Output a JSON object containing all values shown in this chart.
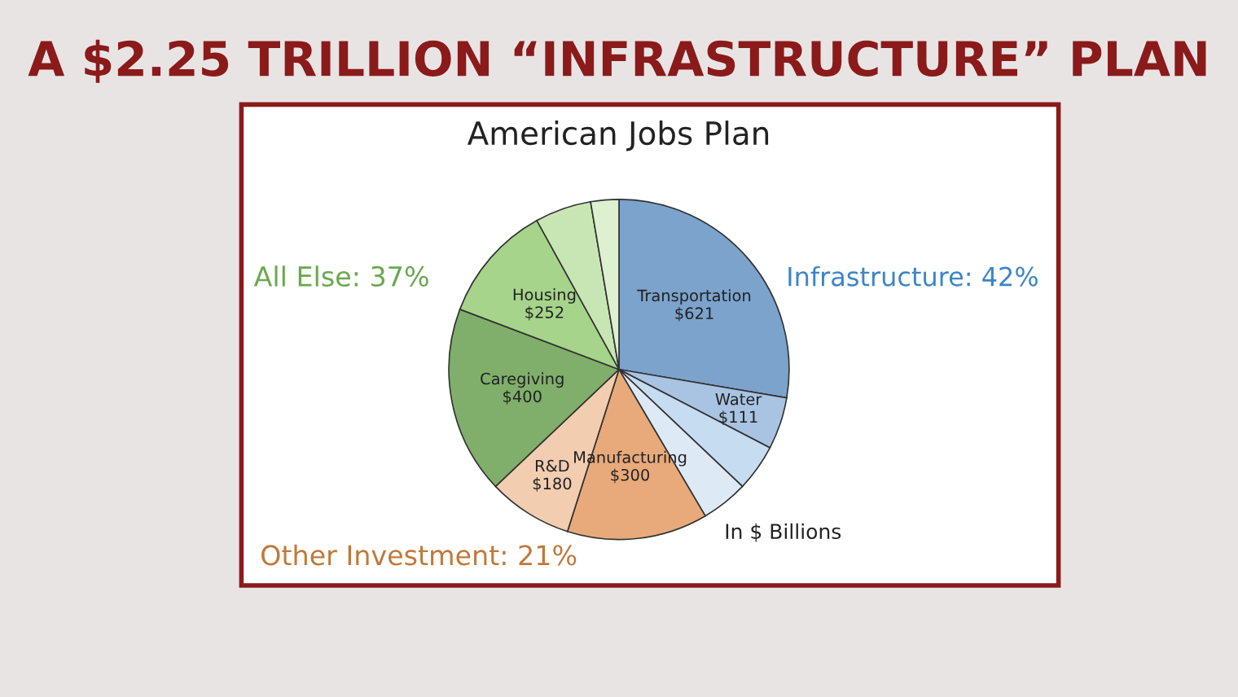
{
  "chart_data": {
    "type": "pie",
    "title": "A $2.25 TRILLION “INFRASTRUCTURE” PLAN",
    "subtitle": "American Jobs Plan",
    "categories": [
      "Transportation",
      "Water",
      null,
      null,
      "Manufacturing",
      "R&D",
      "Caregiving",
      "Housing",
      null,
      null
    ],
    "values": [
      621,
      111,
      100,
      100,
      300,
      180,
      400,
      252,
      120,
      60
    ],
    "value_labels": [
      "$621",
      "$111",
      null,
      null,
      "$300",
      "$180",
      "$400",
      "$252",
      null,
      null
    ],
    "colors": [
      "#7ba3cc",
      "#a8c4e2",
      "#c6dcf0",
      "#dde9f5",
      "#e8aa7a",
      "#f2cdb0",
      "#7faf6a",
      "#a5d48a",
      "#c8e6b4",
      "#ddf0d0"
    ],
    "annotations": [
      "Infrastructure: 42%",
      "Other Investment: 21%",
      "All Else: 37%",
      "In $ Billions"
    ],
    "legend": false
  }
}
